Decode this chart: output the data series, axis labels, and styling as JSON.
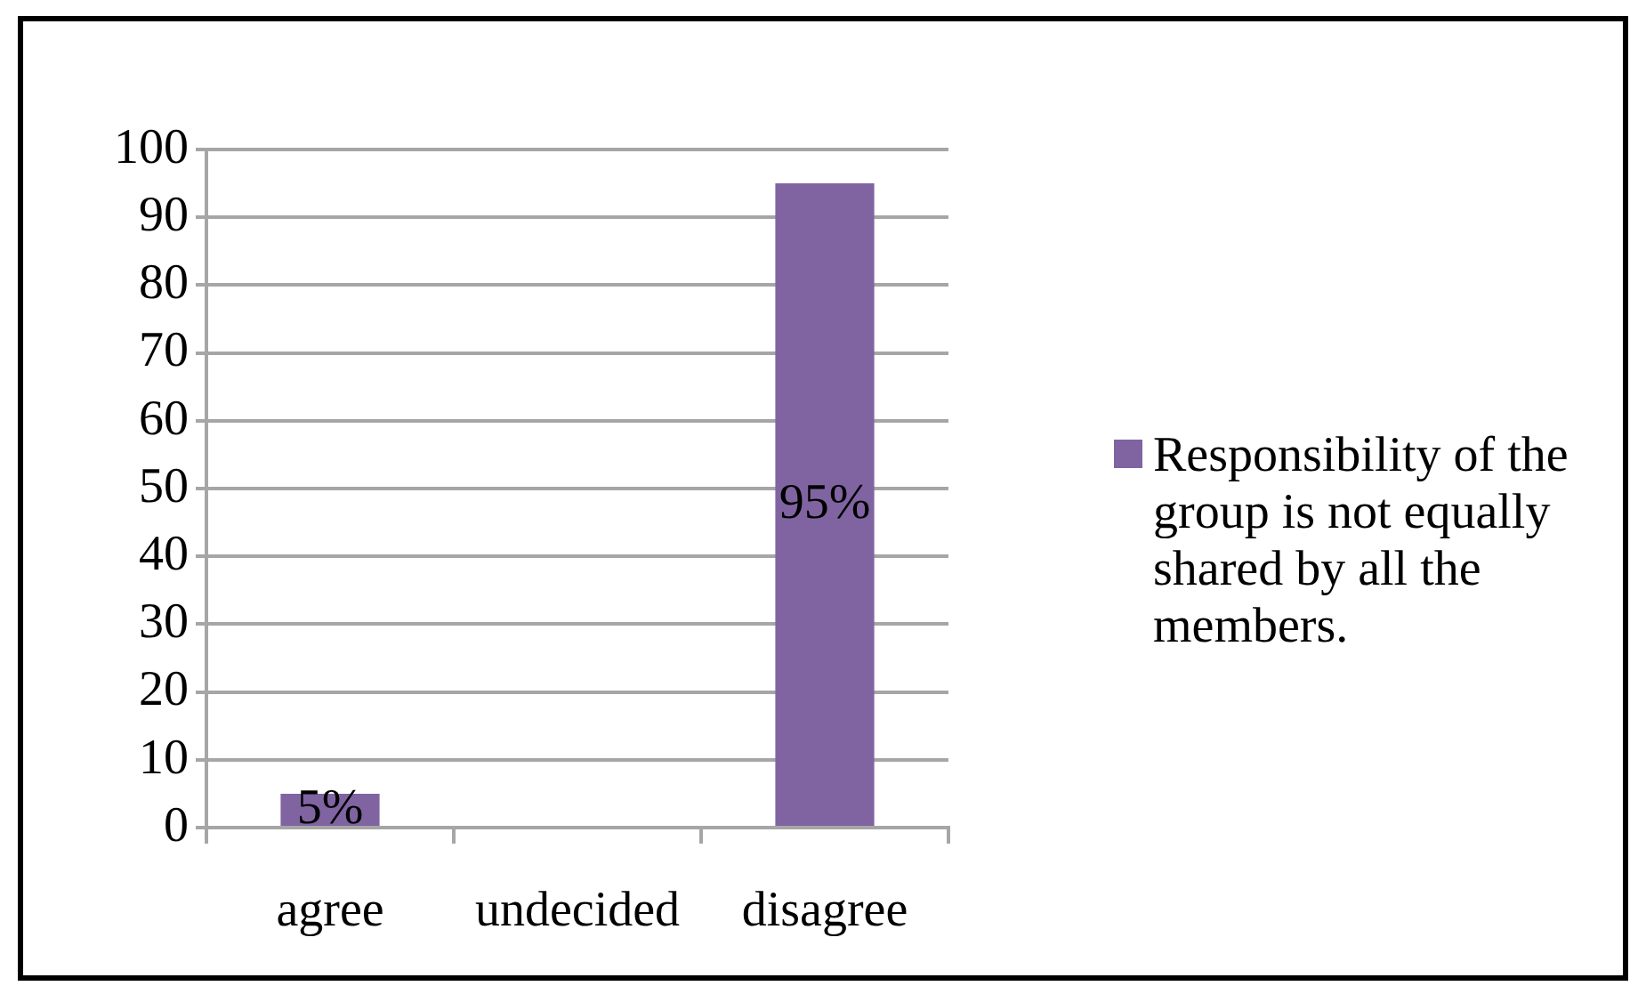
{
  "chart_data": {
    "type": "bar",
    "categories": [
      "agree",
      "undecided",
      "disagree"
    ],
    "series": [
      {
        "name": "Responsibility of the group is not equally shared by all the members.",
        "color": "#8064a2",
        "values": [
          5,
          0,
          95
        ],
        "value_labels": [
          "5%",
          null,
          "95%"
        ]
      }
    ],
    "ylim": [
      0,
      100
    ],
    "yticks": [
      0,
      10,
      20,
      30,
      40,
      50,
      60,
      70,
      80,
      90,
      100
    ],
    "grid": "y",
    "legend": "right"
  }
}
